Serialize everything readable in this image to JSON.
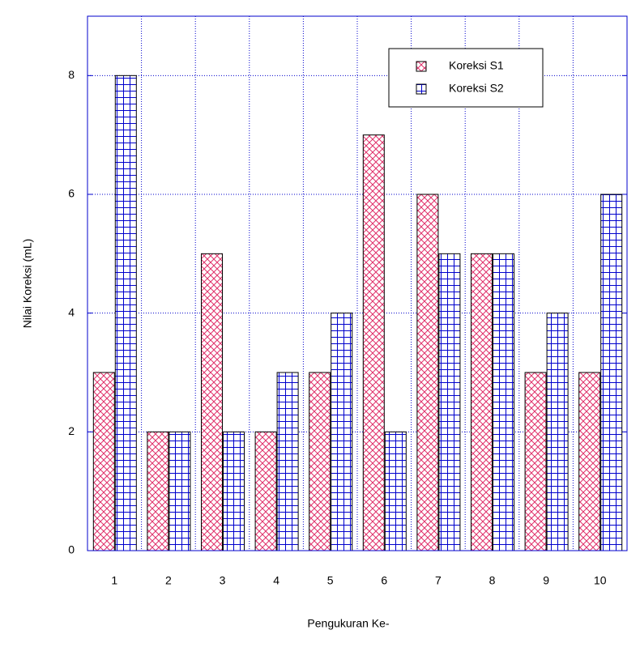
{
  "chart_data": {
    "type": "bar",
    "xlabel": "Pengukuran Ke-",
    "ylabel": "Nilai Koreksi (mL)",
    "categories": [
      "1",
      "2",
      "3",
      "4",
      "5",
      "6",
      "7",
      "8",
      "9",
      "10"
    ],
    "series": [
      {
        "name": "Koreksi S1",
        "color": "#e0306a",
        "values": [
          3,
          2,
          5,
          2,
          3,
          7,
          6,
          5,
          3,
          3
        ]
      },
      {
        "name": "Koreksi S2",
        "color": "#0000cc",
        "values": [
          8,
          2,
          2,
          3,
          4,
          2,
          5,
          5,
          4,
          6
        ]
      }
    ],
    "ylim": [
      0,
      9
    ],
    "yticks": [
      0,
      2,
      4,
      6,
      8
    ],
    "grid": true,
    "legend": "upper right"
  }
}
